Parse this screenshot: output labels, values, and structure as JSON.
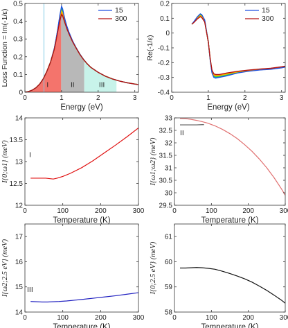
{
  "chart_data": [
    {
      "type": "line",
      "panel_id": "loss",
      "xlabel": "Energy (eV)",
      "ylabel": "Loss Function = Im(-1/ε)",
      "xlim": [
        0,
        3.1
      ],
      "ylim": [
        0,
        0.5
      ],
      "xticks": [
        0,
        1,
        2,
        3
      ],
      "yticks": [
        0,
        0.1,
        0.2,
        0.3,
        0.4,
        0.5
      ],
      "grid": false,
      "legend": {
        "position": "top-right",
        "entries": [
          "15",
          "300"
        ]
      },
      "colors": {
        "15": "#1f4fe0",
        "300": "#b31010",
        "mid": [
          "#00b4d8",
          "#30c050",
          "#e0d000",
          "#ff8800"
        ]
      },
      "vline": {
        "x": 0.52,
        "color": "#7ec8e3"
      },
      "regions": [
        {
          "label": "I",
          "x": [
            0,
            0.99
          ],
          "color": "#f4746c"
        },
        {
          "label": "II",
          "x": [
            0.99,
            1.62
          ],
          "color": "#b8b8b8"
        },
        {
          "label": "III",
          "x": [
            1.62,
            2.5
          ],
          "color": "#c8f3ea"
        }
      ],
      "series": [
        {
          "name": "15",
          "x": [
            0.0,
            0.1,
            0.2,
            0.3,
            0.4,
            0.5,
            0.6,
            0.7,
            0.8,
            0.85,
            0.9,
            0.95,
            1.0,
            1.03,
            1.06,
            1.1,
            1.15,
            1.2,
            1.3,
            1.4,
            1.5,
            1.6,
            1.7,
            1.8,
            2.0,
            2.2,
            2.4,
            2.6,
            2.8,
            3.0,
            3.1
          ],
          "y": [
            0.0,
            0.004,
            0.012,
            0.025,
            0.045,
            0.075,
            0.118,
            0.17,
            0.245,
            0.3,
            0.36,
            0.43,
            0.485,
            0.47,
            0.44,
            0.405,
            0.37,
            0.34,
            0.29,
            0.25,
            0.215,
            0.185,
            0.16,
            0.14,
            0.112,
            0.09,
            0.074,
            0.062,
            0.053,
            0.046,
            0.043
          ]
        },
        {
          "name": "300",
          "x": [
            0.0,
            0.1,
            0.2,
            0.3,
            0.4,
            0.5,
            0.6,
            0.7,
            0.8,
            0.85,
            0.9,
            0.95,
            1.0,
            1.03,
            1.06,
            1.1,
            1.15,
            1.2,
            1.3,
            1.4,
            1.5,
            1.6,
            1.7,
            1.8,
            2.0,
            2.2,
            2.4,
            2.6,
            2.8,
            3.0,
            3.1
          ],
          "y": [
            0.0,
            0.004,
            0.012,
            0.025,
            0.045,
            0.075,
            0.118,
            0.17,
            0.24,
            0.29,
            0.345,
            0.4,
            0.438,
            0.43,
            0.41,
            0.385,
            0.355,
            0.33,
            0.285,
            0.248,
            0.213,
            0.184,
            0.16,
            0.14,
            0.112,
            0.09,
            0.074,
            0.062,
            0.053,
            0.046,
            0.043
          ]
        }
      ]
    },
    {
      "type": "line",
      "panel_id": "re",
      "xlabel": "Energy (eV)",
      "ylabel": "Re(-1/ε)",
      "xlim": [
        0,
        3.1
      ],
      "ylim": [
        -0.4,
        0.2
      ],
      "xticks": [
        0,
        1,
        2,
        3
      ],
      "yticks": [
        -0.4,
        -0.3,
        -0.2,
        -0.1,
        0,
        0.1,
        0.2
      ],
      "grid": false,
      "legend": {
        "position": "top-right",
        "entries": [
          "15",
          "300"
        ]
      },
      "series": [
        {
          "name": "15",
          "x": [
            0.55,
            0.6,
            0.7,
            0.78,
            0.82,
            0.9,
            1.0,
            1.05,
            1.1,
            1.15,
            1.2,
            1.3,
            1.5,
            1.8,
            2.1,
            2.4,
            2.7,
            3.0,
            3.1
          ],
          "y": [
            0.06,
            0.075,
            0.11,
            0.13,
            0.125,
            0.09,
            -0.06,
            -0.18,
            -0.27,
            -0.3,
            -0.305,
            -0.3,
            -0.29,
            -0.27,
            -0.258,
            -0.25,
            -0.245,
            -0.235,
            -0.23
          ]
        },
        {
          "name": "300",
          "x": [
            0.55,
            0.6,
            0.7,
            0.78,
            0.82,
            0.9,
            1.0,
            1.05,
            1.1,
            1.15,
            1.2,
            1.3,
            1.5,
            1.8,
            2.1,
            2.4,
            2.7,
            3.0,
            3.1
          ],
          "y": [
            0.06,
            0.07,
            0.095,
            0.11,
            0.105,
            0.075,
            -0.06,
            -0.17,
            -0.25,
            -0.275,
            -0.28,
            -0.28,
            -0.27,
            -0.258,
            -0.25,
            -0.243,
            -0.238,
            -0.228,
            -0.224
          ]
        }
      ]
    },
    {
      "type": "line",
      "panel_id": "I1",
      "label": "I",
      "xlabel": "Temperature (K)",
      "ylabel": "I{0;ω1} (meV)",
      "xlim": [
        0,
        300
      ],
      "ylim": [
        12,
        14
      ],
      "xticks": [
        0,
        100,
        200,
        300
      ],
      "yticks": [
        12,
        12.5,
        13,
        13.5,
        14
      ],
      "grid": false,
      "series": [
        {
          "name": "",
          "color": "#e01010",
          "x": [
            15,
            25,
            35,
            45,
            55,
            65,
            75,
            85,
            100,
            120,
            150,
            180,
            210,
            240,
            270,
            300
          ],
          "y": [
            12.62,
            12.62,
            12.62,
            12.62,
            12.62,
            12.61,
            12.6,
            12.62,
            12.66,
            12.73,
            12.86,
            13.02,
            13.2,
            13.38,
            13.57,
            13.77
          ]
        }
      ]
    },
    {
      "type": "line",
      "panel_id": "II",
      "label": "II",
      "xlabel": "Temperature (K)",
      "ylabel": "I{ω1;ω2} (meV)",
      "xlim": [
        0,
        300
      ],
      "ylim": [
        29.5,
        33
      ],
      "xticks": [
        0,
        100,
        200,
        300
      ],
      "yticks": [
        29.5,
        30,
        30.5,
        31,
        31.5,
        32,
        32.5,
        33
      ],
      "grid": false,
      "series": [
        {
          "name": "",
          "color": "#555555",
          "x": [
            15,
            30,
            45,
            60,
            75,
            80
          ],
          "y": [
            32.72,
            32.72,
            32.72,
            32.72,
            32.73,
            32.73
          ]
        },
        {
          "name": "",
          "color": "#e07070",
          "x": [
            15,
            30,
            45,
            60,
            75,
            90,
            110,
            130,
            150,
            170,
            190,
            210,
            230,
            250,
            270,
            290,
            300
          ],
          "y": [
            32.98,
            32.97,
            32.94,
            32.9,
            32.85,
            32.79,
            32.68,
            32.54,
            32.37,
            32.17,
            31.93,
            31.66,
            31.35,
            31.0,
            30.6,
            30.15,
            29.9
          ]
        }
      ]
    },
    {
      "type": "line",
      "panel_id": "III",
      "label": "III",
      "xlabel": "Temperature (K)",
      "ylabel": "I{ω2;2.5 eV} (meV)",
      "xlim": [
        0,
        300
      ],
      "ylim": [
        14,
        17.5
      ],
      "xticks": [
        0,
        100,
        200,
        300
      ],
      "yticks": [
        14,
        15,
        16,
        17
      ],
      "grid": false,
      "series": [
        {
          "name": "",
          "color": "#2020c0",
          "x": [
            15,
            30,
            45,
            60,
            75,
            90,
            110,
            130,
            150,
            180,
            210,
            240,
            270,
            300
          ],
          "y": [
            14.42,
            14.41,
            14.4,
            14.4,
            14.41,
            14.42,
            14.44,
            14.47,
            14.5,
            14.55,
            14.6,
            14.65,
            14.71,
            14.77
          ]
        }
      ]
    },
    {
      "type": "line",
      "panel_id": "total",
      "xlabel": "Temperature (K)",
      "ylabel": "I{0;2.5 eV} (meV)",
      "xlim": [
        0,
        300
      ],
      "ylim": [
        58,
        61.5
      ],
      "xticks": [
        0,
        100,
        200,
        300
      ],
      "yticks": [
        58,
        59,
        60,
        61
      ],
      "grid": false,
      "series": [
        {
          "name": "",
          "color": "#111111",
          "x": [
            15,
            30,
            45,
            60,
            75,
            90,
            110,
            130,
            150,
            170,
            190,
            210,
            230,
            250,
            270,
            290,
            300
          ],
          "y": [
            59.75,
            59.75,
            59.76,
            59.77,
            59.76,
            59.74,
            59.7,
            59.62,
            59.53,
            59.43,
            59.32,
            59.19,
            59.03,
            58.86,
            58.67,
            58.47,
            58.35
          ]
        }
      ]
    }
  ]
}
